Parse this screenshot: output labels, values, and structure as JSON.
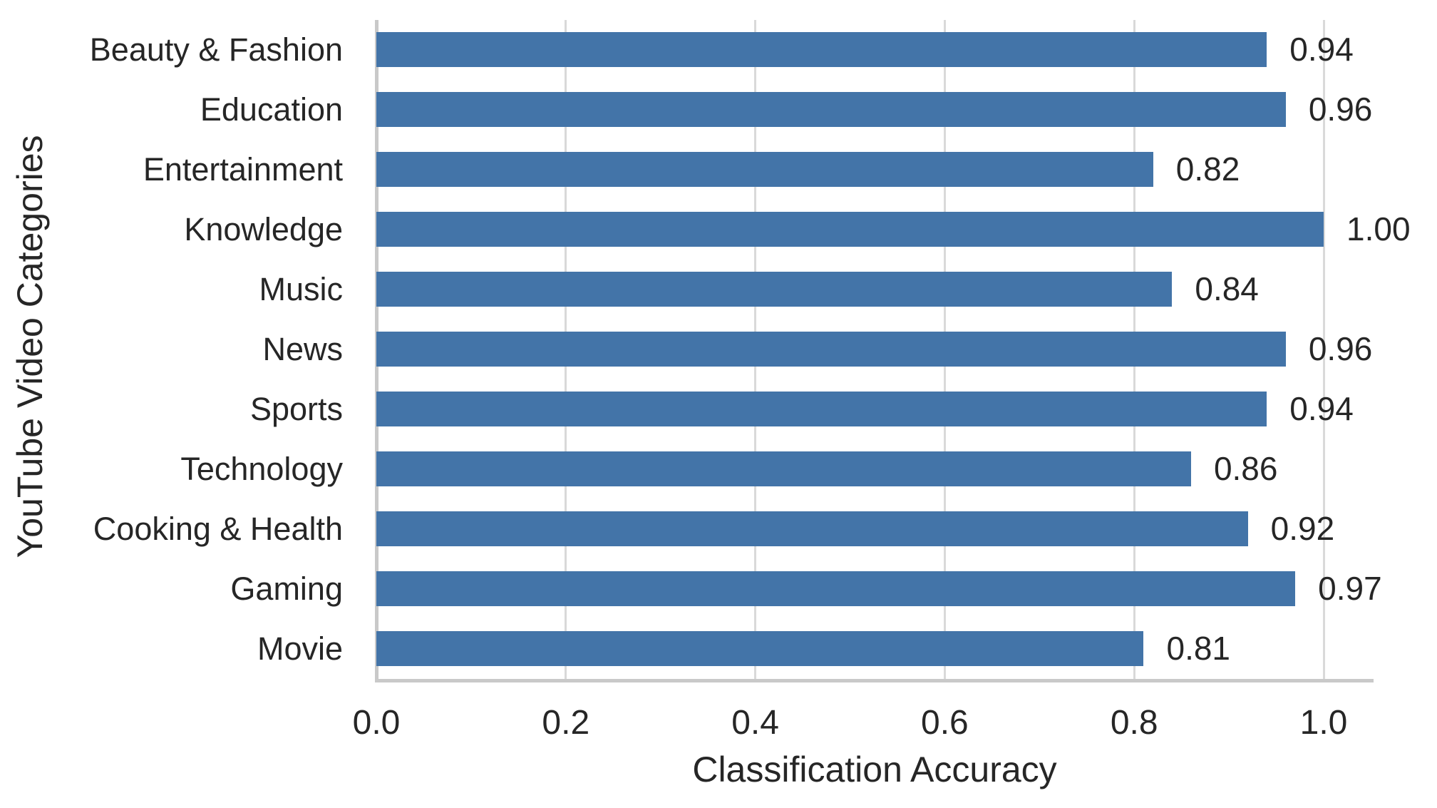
{
  "chart_data": {
    "type": "bar",
    "orientation": "horizontal",
    "title": "",
    "xlabel": "Classification Accuracy",
    "ylabel": "YouTube Video Categories",
    "categories": [
      "Beauty & Fashion",
      "Education",
      "Entertainment",
      "Knowledge",
      "Music",
      "News",
      "Sports",
      "Technology",
      "Cooking & Health",
      "Gaming",
      "Movie"
    ],
    "values": [
      0.94,
      0.96,
      0.82,
      1.0,
      0.84,
      0.96,
      0.94,
      0.86,
      0.92,
      0.97,
      0.81
    ],
    "value_labels": [
      "0.94",
      "0.96",
      "0.82",
      "1.00",
      "0.84",
      "0.96",
      "0.94",
      "0.86",
      "0.92",
      "0.97",
      "0.81"
    ],
    "xticks": [
      0.0,
      0.2,
      0.4,
      0.6,
      0.8,
      1.0
    ],
    "xtick_labels": [
      "0.0",
      "0.2",
      "0.4",
      "0.6",
      "0.8",
      "1.0"
    ],
    "xlim": [
      0,
      1.053
    ],
    "grid": true,
    "legend": false,
    "bar_color": "#4374a8",
    "gridline_color": "#d9d9d9",
    "spine_color": "#c9c9c9",
    "text_color": "#262626",
    "background_color": "#ffffff"
  }
}
